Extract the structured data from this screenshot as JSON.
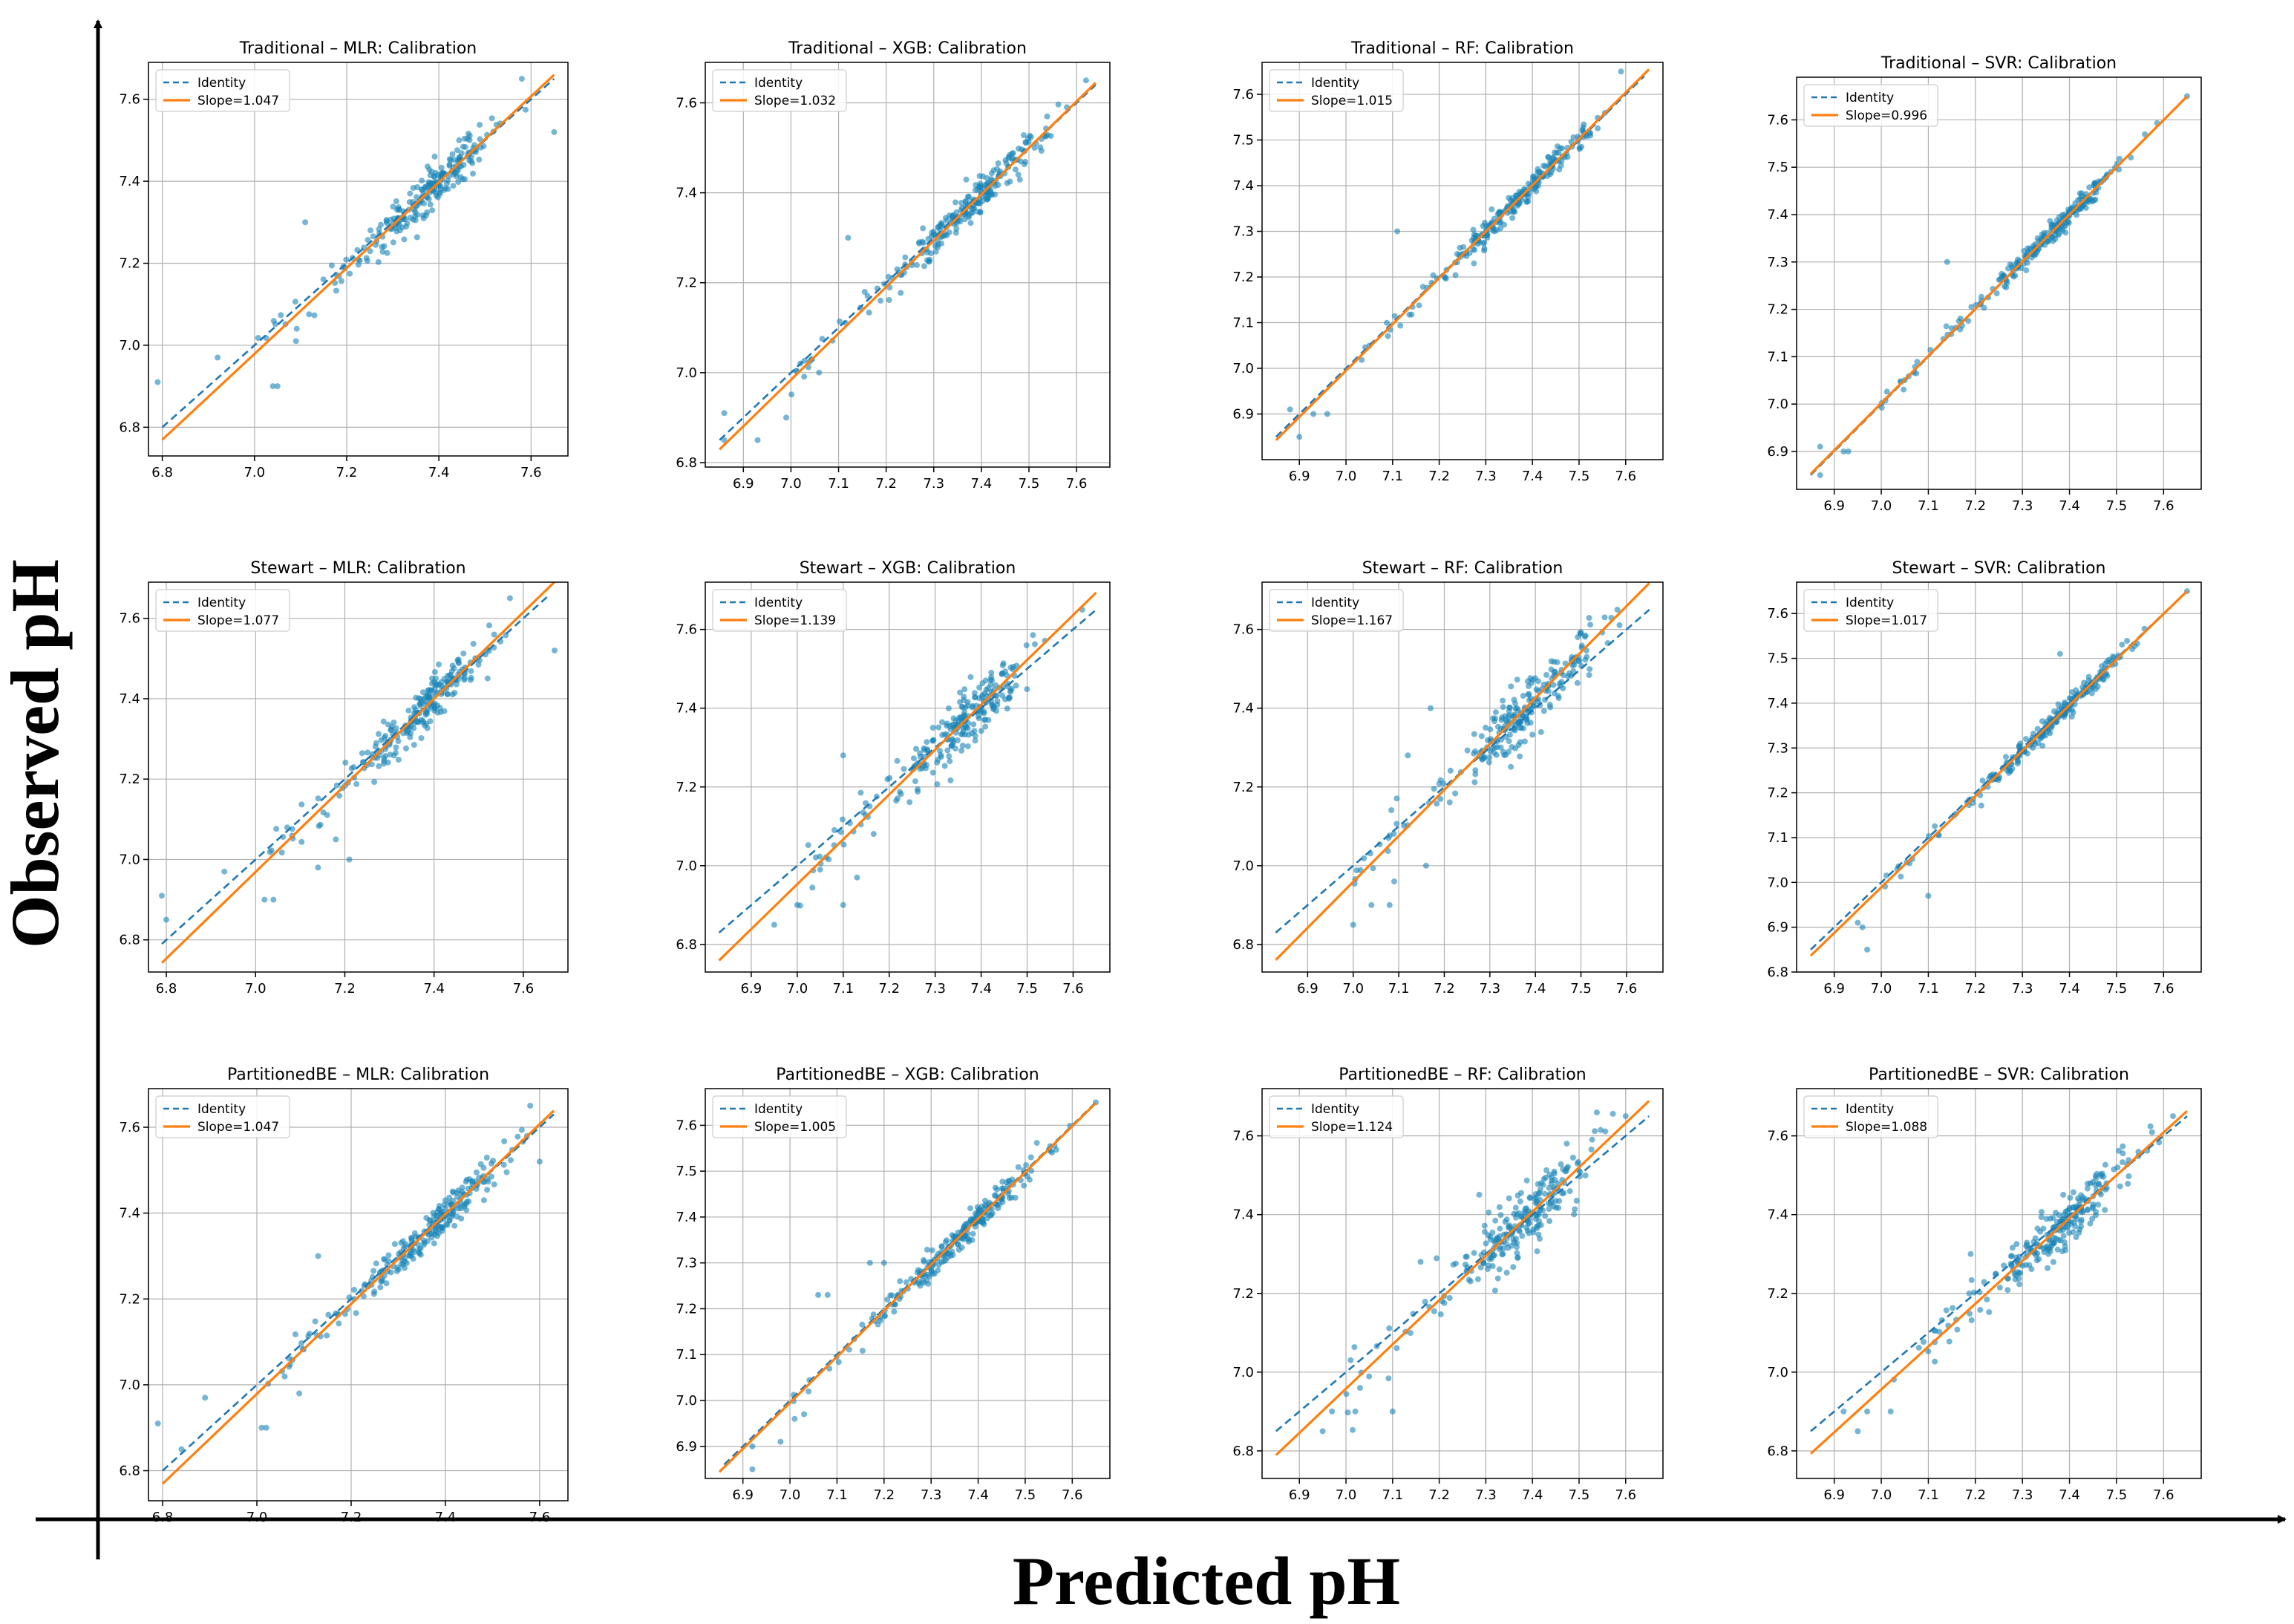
{
  "figure": {
    "x_axis_label": "Predicted pH",
    "y_axis_label": "Observed pH"
  },
  "colors": {
    "identity": "#1f77b4",
    "fit": "#ff7f0e",
    "points": "#1a86b8"
  },
  "chart_data": [
    {
      "type": "scatter",
      "title": "Traditional – MLR: Calibration",
      "legend": {
        "identity": "Identity",
        "fit": "Slope=1.047"
      },
      "slope": 1.047,
      "intercept": -0.35,
      "xlim": [
        6.77,
        7.68
      ],
      "ylim": [
        6.73,
        7.69
      ],
      "xticks": [
        6.8,
        7.0,
        7.2,
        7.4,
        7.6
      ],
      "yticks": [
        6.8,
        7.0,
        7.2,
        7.4,
        7.6
      ],
      "outliers": [
        [
          6.79,
          6.91
        ],
        [
          7.11,
          7.3
        ],
        [
          7.05,
          6.9
        ],
        [
          7.04,
          6.9
        ],
        [
          7.65,
          7.52
        ],
        [
          7.58,
          7.65
        ],
        [
          6.92,
          6.97
        ],
        [
          7.09,
          7.01
        ]
      ]
    },
    {
      "type": "scatter",
      "title": "Traditional – XGB: Calibration",
      "legend": {
        "identity": "Identity",
        "fit": "Slope=1.032"
      },
      "slope": 1.032,
      "intercept": -0.24,
      "xlim": [
        6.82,
        7.67
      ],
      "ylim": [
        6.79,
        7.69
      ],
      "xticks": [
        6.9,
        7.0,
        7.1,
        7.2,
        7.3,
        7.4,
        7.5,
        7.6
      ],
      "yticks": [
        6.8,
        7.0,
        7.2,
        7.4,
        7.6
      ],
      "outliers": [
        [
          6.86,
          6.91
        ],
        [
          6.99,
          6.9
        ],
        [
          6.86,
          6.85
        ],
        [
          7.12,
          7.3
        ],
        [
          7.62,
          7.65
        ],
        [
          6.93,
          6.85
        ]
      ]
    },
    {
      "type": "scatter",
      "title": "Traditional – RF: Calibration",
      "legend": {
        "identity": "Identity",
        "fit": "Slope=1.015"
      },
      "slope": 1.015,
      "intercept": -0.11,
      "xlim": [
        6.82,
        7.68
      ],
      "ylim": [
        6.8,
        7.67
      ],
      "xticks": [
        6.9,
        7.0,
        7.1,
        7.2,
        7.3,
        7.4,
        7.5,
        7.6
      ],
      "yticks": [
        6.9,
        7.0,
        7.1,
        7.2,
        7.3,
        7.4,
        7.5,
        7.6
      ],
      "outliers": [
        [
          6.88,
          6.91
        ],
        [
          6.93,
          6.9
        ],
        [
          6.96,
          6.9
        ],
        [
          6.9,
          6.85
        ],
        [
          7.11,
          7.3
        ],
        [
          7.59,
          7.65
        ]
      ]
    },
    {
      "type": "scatter",
      "title": "Traditional – SVR: Calibration",
      "legend": {
        "identity": "Identity",
        "fit": "Slope=0.996"
      },
      "slope": 0.996,
      "intercept": 0.03,
      "xlim": [
        6.82,
        7.68
      ],
      "ylim": [
        6.82,
        7.69
      ],
      "xticks": [
        6.9,
        7.0,
        7.1,
        7.2,
        7.3,
        7.4,
        7.5,
        7.6
      ],
      "yticks": [
        6.9,
        7.0,
        7.1,
        7.2,
        7.3,
        7.4,
        7.5,
        7.6
      ],
      "outliers": [
        [
          6.87,
          6.91
        ],
        [
          6.87,
          6.85
        ],
        [
          6.92,
          6.9
        ],
        [
          6.93,
          6.9
        ],
        [
          7.14,
          7.3
        ],
        [
          7.65,
          7.65
        ]
      ]
    },
    {
      "type": "scatter",
      "title": "Stewart – MLR: Calibration",
      "legend": {
        "identity": "Identity",
        "fit": "Slope=1.077"
      },
      "slope": 1.077,
      "intercept": -0.57,
      "xlim": [
        6.76,
        7.7
      ],
      "ylim": [
        6.72,
        7.69
      ],
      "xticks": [
        6.8,
        7.0,
        7.2,
        7.4,
        7.6
      ],
      "yticks": [
        6.8,
        7.0,
        7.2,
        7.4,
        7.6
      ],
      "outliers": [
        [
          6.79,
          6.91
        ],
        [
          6.8,
          6.85
        ],
        [
          7.02,
          6.9
        ],
        [
          7.04,
          6.9
        ],
        [
          7.67,
          7.52
        ],
        [
          7.57,
          7.65
        ],
        [
          6.93,
          6.97
        ],
        [
          7.14,
          6.98
        ],
        [
          7.21,
          7.0
        ],
        [
          7.18,
          7.05
        ]
      ]
    },
    {
      "type": "scatter",
      "title": "Stewart – XGB: Calibration",
      "legend": {
        "identity": "Identity",
        "fit": "Slope=1.139"
      },
      "slope": 1.139,
      "intercept": -1.02,
      "xlim": [
        6.8,
        7.68
      ],
      "ylim": [
        6.73,
        7.72
      ],
      "xticks": [
        6.9,
        7.0,
        7.1,
        7.2,
        7.3,
        7.4,
        7.5,
        7.6
      ],
      "yticks": [
        6.8,
        7.0,
        7.2,
        7.4,
        7.6
      ],
      "outliers": [
        [
          6.95,
          6.85
        ],
        [
          7.0,
          6.9
        ],
        [
          7.1,
          6.9
        ],
        [
          7.13,
          6.97
        ],
        [
          7.1,
          7.28
        ],
        [
          7.62,
          7.65
        ],
        [
          7.05,
          6.99
        ]
      ]
    },
    {
      "type": "scatter",
      "title": "Stewart – RF: Calibration",
      "legend": {
        "identity": "Identity",
        "fit": "Slope=1.167"
      },
      "slope": 1.167,
      "intercept": -1.21,
      "xlim": [
        6.8,
        7.68
      ],
      "ylim": [
        6.73,
        7.72
      ],
      "xticks": [
        6.9,
        7.0,
        7.1,
        7.2,
        7.3,
        7.4,
        7.5,
        7.6
      ],
      "yticks": [
        6.8,
        7.0,
        7.2,
        7.4,
        7.6
      ],
      "outliers": [
        [
          7.0,
          6.85
        ],
        [
          7.04,
          6.9
        ],
        [
          7.08,
          6.9
        ],
        [
          7.12,
          7.28
        ],
        [
          7.17,
          7.4
        ],
        [
          7.58,
          7.65
        ],
        [
          7.09,
          6.96
        ],
        [
          7.16,
          7.0
        ]
      ]
    },
    {
      "type": "scatter",
      "title": "Stewart – SVR: Calibration",
      "legend": {
        "identity": "Identity",
        "fit": "Slope=1.017"
      },
      "slope": 1.017,
      "intercept": -0.13,
      "xlim": [
        6.82,
        7.68
      ],
      "ylim": [
        6.8,
        7.67
      ],
      "xticks": [
        6.9,
        7.0,
        7.1,
        7.2,
        7.3,
        7.4,
        7.5,
        7.6
      ],
      "yticks": [
        6.8,
        6.9,
        7.0,
        7.1,
        7.2,
        7.3,
        7.4,
        7.5,
        7.6
      ],
      "outliers": [
        [
          6.95,
          6.91
        ],
        [
          6.96,
          6.9
        ],
        [
          6.97,
          6.85
        ],
        [
          7.1,
          6.97
        ],
        [
          7.38,
          7.51
        ],
        [
          7.65,
          7.65
        ]
      ]
    },
    {
      "type": "scatter",
      "title": "PartitionedBE – MLR: Calibration",
      "legend": {
        "identity": "Identity",
        "fit": "Slope=1.047"
      },
      "slope": 1.047,
      "intercept": -0.35,
      "xlim": [
        6.77,
        7.66
      ],
      "ylim": [
        6.73,
        7.69
      ],
      "xticks": [
        6.8,
        7.0,
        7.2,
        7.4,
        7.6
      ],
      "yticks": [
        6.8,
        7.0,
        7.2,
        7.4,
        7.6
      ],
      "outliers": [
        [
          6.79,
          6.91
        ],
        [
          7.01,
          6.9
        ],
        [
          7.02,
          6.9
        ],
        [
          7.13,
          7.3
        ],
        [
          7.6,
          7.52
        ],
        [
          7.58,
          7.65
        ],
        [
          6.89,
          6.97
        ],
        [
          7.09,
          6.98
        ],
        [
          6.84,
          6.85
        ]
      ]
    },
    {
      "type": "scatter",
      "title": "PartitionedBE – XGB: Calibration",
      "legend": {
        "identity": "Identity",
        "fit": "Slope=1.005"
      },
      "slope": 1.005,
      "intercept": -0.04,
      "xlim": [
        6.82,
        7.68
      ],
      "ylim": [
        6.83,
        7.68
      ],
      "xticks": [
        6.9,
        7.0,
        7.1,
        7.2,
        7.3,
        7.4,
        7.5,
        7.6
      ],
      "yticks": [
        6.9,
        7.0,
        7.1,
        7.2,
        7.3,
        7.4,
        7.5,
        7.6
      ],
      "outliers": [
        [
          6.92,
          6.85
        ],
        [
          6.92,
          6.9
        ],
        [
          6.98,
          6.91
        ],
        [
          7.01,
          6.96
        ],
        [
          7.06,
          7.23
        ],
        [
          7.08,
          7.23
        ],
        [
          7.17,
          7.3
        ],
        [
          7.2,
          7.3
        ],
        [
          7.65,
          7.65
        ],
        [
          7.03,
          6.97
        ]
      ]
    },
    {
      "type": "scatter",
      "title": "PartitionedBE – RF: Calibration",
      "legend": {
        "identity": "Identity",
        "fit": "Slope=1.124"
      },
      "slope": 1.124,
      "intercept": -0.91,
      "xlim": [
        6.82,
        7.68
      ],
      "ylim": [
        6.73,
        7.72
      ],
      "xticks": [
        6.9,
        7.0,
        7.1,
        7.2,
        7.3,
        7.4,
        7.5,
        7.6
      ],
      "yticks": [
        6.8,
        7.0,
        7.2,
        7.4,
        7.6
      ],
      "outliers": [
        [
          6.95,
          6.85
        ],
        [
          6.97,
          6.9
        ],
        [
          7.02,
          6.9
        ],
        [
          7.1,
          6.9
        ],
        [
          7.16,
          7.28
        ],
        [
          7.6,
          7.65
        ],
        [
          7.03,
          6.96
        ]
      ]
    },
    {
      "type": "scatter",
      "title": "PartitionedBE – SVR: Calibration",
      "legend": {
        "identity": "Identity",
        "fit": "Slope=1.088"
      },
      "slope": 1.088,
      "intercept": -0.66,
      "xlim": [
        6.82,
        7.68
      ],
      "ylim": [
        6.73,
        7.72
      ],
      "xticks": [
        6.9,
        7.0,
        7.1,
        7.2,
        7.3,
        7.4,
        7.5,
        7.6
      ],
      "yticks": [
        6.8,
        7.0,
        7.2,
        7.4,
        7.6
      ],
      "outliers": [
        [
          6.92,
          6.9
        ],
        [
          6.95,
          6.85
        ],
        [
          6.97,
          6.9
        ],
        [
          7.02,
          6.9
        ],
        [
          7.19,
          7.3
        ],
        [
          7.62,
          7.65
        ]
      ]
    }
  ]
}
